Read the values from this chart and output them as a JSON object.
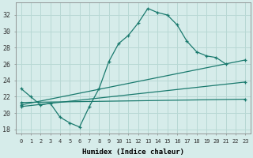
{
  "xlabel": "Humidex (Indice chaleur)",
  "background_color": "#d6ecea",
  "grid_color": "#b8d8d4",
  "line_color": "#1a7a6e",
  "xlim": [
    -0.5,
    23.5
  ],
  "ylim": [
    17.5,
    33.5
  ],
  "xtick_labels": [
    "0",
    "1",
    "2",
    "3",
    "4",
    "5",
    "6",
    "7",
    "8",
    "9",
    "10",
    "11",
    "12",
    "13",
    "14",
    "15",
    "16",
    "17",
    "18",
    "19",
    "20",
    "21",
    "22",
    "23"
  ],
  "ytick_values": [
    18,
    20,
    22,
    24,
    26,
    28,
    30,
    32
  ],
  "line1_x": [
    0,
    1,
    2,
    3,
    4,
    5,
    6,
    7,
    8,
    9,
    10,
    11,
    12,
    13,
    14,
    15,
    16,
    17,
    18,
    19,
    20,
    21
  ],
  "line1_y": [
    23.0,
    22.0,
    21.0,
    21.2,
    19.5,
    18.8,
    18.3,
    20.8,
    23.0,
    26.3,
    28.5,
    29.5,
    31.0,
    32.8,
    32.3,
    32.0,
    30.8,
    28.8,
    27.5,
    27.0,
    26.8,
    26.0
  ],
  "line2_x": [
    0,
    23
  ],
  "line2_y": [
    21.3,
    21.7
  ],
  "line3_x": [
    0,
    23
  ],
  "line3_y": [
    21.0,
    26.5
  ],
  "line4_x": [
    0,
    23
  ],
  "line4_y": [
    20.8,
    23.8
  ]
}
